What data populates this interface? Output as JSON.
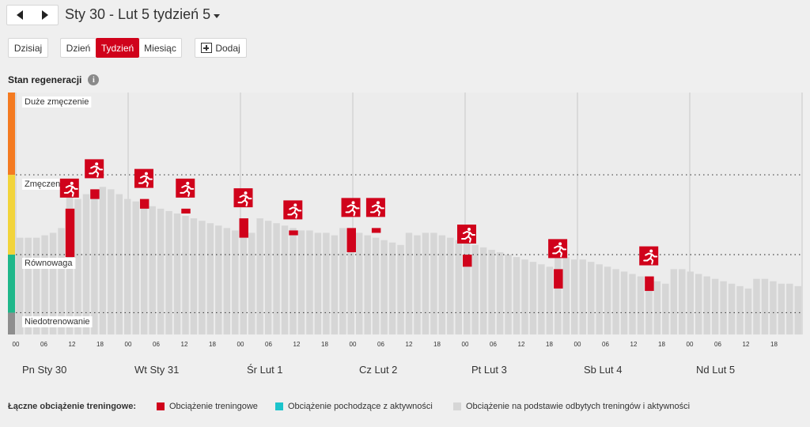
{
  "nav": {
    "title": "Sty 30 - Lut 5 tydzień 5"
  },
  "toolbar": {
    "today": "Dzisiaj",
    "views": [
      {
        "label": "Dzień",
        "active": false
      },
      {
        "label": "Tydzień",
        "active": true
      },
      {
        "label": "Miesiąc",
        "active": false
      }
    ],
    "add": "Dodaj"
  },
  "section": {
    "title": "Stan regeneracji",
    "info_icon": "i"
  },
  "colors": {
    "accent": "#d0021b",
    "zone_high": "#f47a20",
    "zone_fatigue": "#f2d43b",
    "zone_balance": "#1fb78a",
    "zone_under": "#8e8e8e",
    "activity": "#1cc4cc",
    "base_bar": "#d6d6d6"
  },
  "chart_data": {
    "type": "bar",
    "zones": [
      "Duże zmęczenie",
      "Zmęczenie",
      "Równowaga",
      "Niedotrenowanie"
    ],
    "hour_ticks": [
      "00",
      "06",
      "12",
      "18"
    ],
    "days": [
      "Pn Sty 30",
      "Wt Sty 31",
      "Śr Lut 1",
      "Cz Lut 2",
      "Pt Lut 3",
      "Sb Lut 4",
      "Nd Lut 5"
    ],
    "recovery_values": [
      40,
      40,
      40,
      41,
      42,
      44,
      57,
      56,
      58,
      60,
      61,
      60,
      58,
      56,
      55,
      54,
      53,
      52,
      51,
      50,
      49,
      48,
      47,
      46,
      45,
      44,
      43,
      42,
      42,
      48,
      47,
      46,
      45,
      44,
      43,
      43,
      42,
      42,
      41,
      44,
      43,
      42,
      41,
      40,
      39,
      38,
      37,
      42,
      41,
      42,
      42,
      41,
      40,
      39,
      38,
      37,
      36,
      35,
      34,
      33,
      32,
      31,
      30,
      29,
      28,
      33,
      32,
      31,
      31,
      30,
      29,
      28,
      27,
      26,
      25,
      24,
      23,
      22,
      21,
      27,
      27,
      26,
      25,
      24,
      23,
      22,
      21,
      20,
      19,
      23,
      23,
      22,
      21,
      21,
      20
    ],
    "trainings": [
      {
        "slot": 6,
        "bottom": 32,
        "top": 52
      },
      {
        "slot": 9,
        "bottom": 56,
        "top": 60
      },
      {
        "slot": 15,
        "bottom": 52,
        "top": 56
      },
      {
        "slot": 20,
        "bottom": 50,
        "top": 52
      },
      {
        "slot": 27,
        "bottom": 40,
        "top": 48
      },
      {
        "slot": 33,
        "bottom": 41,
        "top": 43
      },
      {
        "slot": 40,
        "bottom": 34,
        "top": 44
      },
      {
        "slot": 43,
        "bottom": 42,
        "top": 44
      },
      {
        "slot": 54,
        "bottom": 28,
        "top": 33
      },
      {
        "slot": 65,
        "bottom": 19,
        "top": 27
      },
      {
        "slot": 76,
        "bottom": 18,
        "top": 24
      }
    ],
    "training_icon": "running-person-icon"
  },
  "legend": {
    "title": "Łączne obciążenie treningowe:",
    "items": [
      {
        "label": "Obciążenie treningowe",
        "color": "#d0021b"
      },
      {
        "label": "Obciążenie pochodzące z aktywności",
        "color": "#1cc4cc"
      },
      {
        "label": "Obciążenie na podstawie odbytych treningów i aktywności",
        "color": "#d6d6d6"
      }
    ]
  }
}
